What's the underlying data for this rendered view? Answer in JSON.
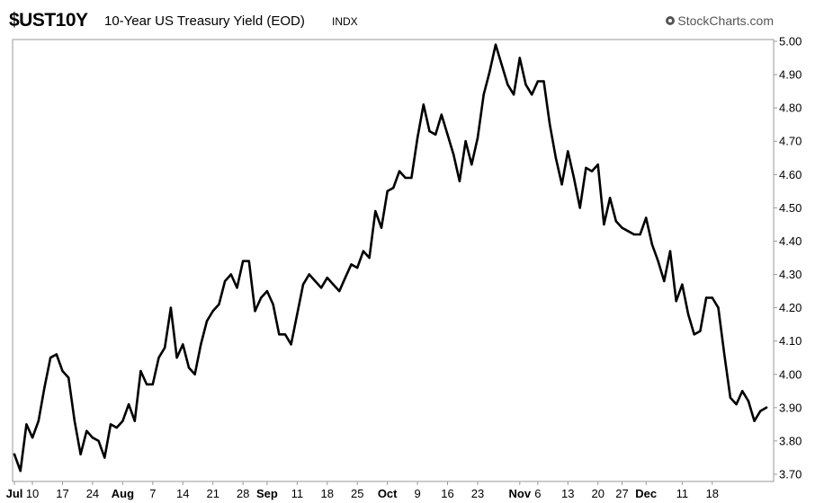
{
  "header": {
    "symbol": "$UST10Y",
    "title": "10-Year US Treasury Yield (EOD)",
    "exchange": "INDX",
    "brand": "StockCharts.com",
    "brand_icon": "stockcharts-logo-icon"
  },
  "colors": {
    "line": "#000000",
    "frame": "#999999",
    "background": "#ffffff"
  },
  "chart_data": {
    "type": "line",
    "title": "10-Year US Treasury Yield (EOD)",
    "xlabel": "",
    "ylabel": "",
    "ylim": [
      3.7,
      5.0
    ],
    "y_axis_position": "right",
    "grid": false,
    "legend": "none",
    "y_ticks": [
      "3.70",
      "3.80",
      "3.90",
      "4.00",
      "4.10",
      "4.20",
      "4.30",
      "4.40",
      "4.50",
      "4.60",
      "4.70",
      "4.80",
      "4.90",
      "5.00"
    ],
    "x_ticks": [
      {
        "label": "Jul",
        "bold": true,
        "day": -3
      },
      {
        "label": "10",
        "bold": false,
        "day": 0
      },
      {
        "label": "17",
        "bold": false,
        "day": 5
      },
      {
        "label": "24",
        "bold": false,
        "day": 10
      },
      {
        "label": "Aug",
        "bold": true,
        "day": 15
      },
      {
        "label": "7",
        "bold": false,
        "day": 20
      },
      {
        "label": "14",
        "bold": false,
        "day": 25
      },
      {
        "label": "21",
        "bold": false,
        "day": 30
      },
      {
        "label": "28",
        "bold": false,
        "day": 35
      },
      {
        "label": "Sep",
        "bold": true,
        "day": 39
      },
      {
        "label": "11",
        "bold": false,
        "day": 44
      },
      {
        "label": "18",
        "bold": false,
        "day": 49
      },
      {
        "label": "25",
        "bold": false,
        "day": 54
      },
      {
        "label": "Oct",
        "bold": true,
        "day": 59
      },
      {
        "label": "9",
        "bold": false,
        "day": 64
      },
      {
        "label": "16",
        "bold": false,
        "day": 69
      },
      {
        "label": "23",
        "bold": false,
        "day": 74
      },
      {
        "label": "Nov",
        "bold": true,
        "day": 81
      },
      {
        "label": "6",
        "bold": false,
        "day": 84
      },
      {
        "label": "13",
        "bold": false,
        "day": 89
      },
      {
        "label": "20",
        "bold": false,
        "day": 94
      },
      {
        "label": "27",
        "bold": false,
        "day": 98
      },
      {
        "label": "Dec",
        "bold": true,
        "day": 102
      },
      {
        "label": "11",
        "bold": false,
        "day": 108
      },
      {
        "label": "18",
        "bold": false,
        "day": 113
      }
    ],
    "series": [
      {
        "values": [
          3.76,
          3.71,
          3.85,
          3.81,
          3.86,
          3.96,
          4.05,
          4.06,
          4.01,
          3.99,
          3.86,
          3.76,
          3.83,
          3.81,
          3.8,
          3.75,
          3.85,
          3.84,
          3.86,
          3.91,
          3.86,
          4.01,
          3.97,
          3.97,
          4.05,
          4.08,
          4.2,
          4.05,
          4.09,
          4.02,
          4.0,
          4.09,
          4.16,
          4.19,
          4.21,
          4.28,
          4.3,
          4.26,
          4.34,
          4.34,
          4.19,
          4.23,
          4.25,
          4.21,
          4.12,
          4.12,
          4.09,
          4.18,
          4.27,
          4.3,
          4.28,
          4.26,
          4.29,
          4.27,
          4.25,
          4.29,
          4.33,
          4.32,
          4.37,
          4.35,
          4.49,
          4.44,
          4.55,
          4.56,
          4.61,
          4.59,
          4.59,
          4.71,
          4.81,
          4.73,
          4.72,
          4.78,
          4.72,
          4.66,
          4.58,
          4.7,
          4.63,
          4.71,
          4.84,
          4.91,
          4.99,
          4.93,
          4.87,
          4.84,
          4.95,
          4.87,
          4.84,
          4.88,
          4.88,
          4.75,
          4.65,
          4.57,
          4.67,
          4.59,
          4.5,
          4.62,
          4.61,
          4.63,
          4.45,
          4.53,
          4.46,
          4.44,
          4.43,
          4.42,
          4.42,
          4.47,
          4.39,
          4.34,
          4.28,
          4.37,
          4.22,
          4.27,
          4.18,
          4.12,
          4.13,
          4.23,
          4.23,
          4.2,
          4.06,
          3.93,
          3.91,
          3.95,
          3.92,
          3.86,
          3.89,
          3.9
        ]
      }
    ]
  }
}
